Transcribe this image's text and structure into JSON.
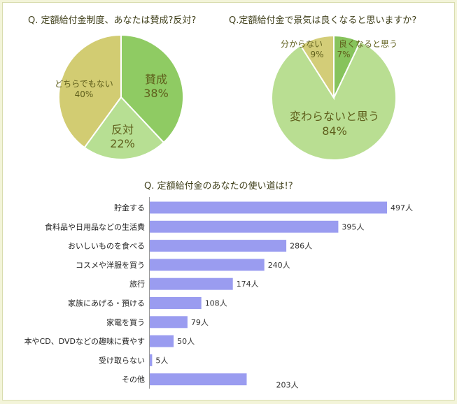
{
  "colors": {
    "pie1": [
      "#8fcb63",
      "#b7df93",
      "#d2cc72"
    ],
    "pie2": [
      "#87c35c",
      "#b9de92",
      "#d3cd78"
    ],
    "bar": "#9a9cf0",
    "text": "#5f5f1c"
  },
  "chart_data": [
    {
      "type": "pie",
      "title": "Q. 定額給付金制度、あなたは賛成?反対?",
      "slices": [
        {
          "label": "賛成",
          "value": 38,
          "display": "38%"
        },
        {
          "label": "反対",
          "value": 22,
          "display": "22%"
        },
        {
          "label": "どちらでもない",
          "value": 40,
          "display": "40%"
        }
      ]
    },
    {
      "type": "pie",
      "title": "Q.定額給付金で景気は良くなると思いますか?",
      "slices": [
        {
          "label": "良くなると思う",
          "value": 7,
          "display": "7%"
        },
        {
          "label": "変わらないと思う",
          "value": 84,
          "display": "84%"
        },
        {
          "label": "分からない",
          "value": 9,
          "display": "9%"
        }
      ]
    },
    {
      "type": "bar",
      "orientation": "horizontal",
      "title": "Q. 定額給付金のあなたの使い道は!?",
      "categories": [
        "貯金する",
        "食料品や日用品などの生活費",
        "おいしいものを食べる",
        "コスメや洋服を買う",
        "旅行",
        "家族にあげる・預ける",
        "家電を買う",
        "本やCD、DVDなどの趣味に費やす",
        "受け取らない",
        "その他"
      ],
      "values": [
        497,
        395,
        286,
        240,
        174,
        108,
        79,
        50,
        5,
        203
      ],
      "value_labels": [
        "497人",
        "395人",
        "286人",
        "240人",
        "174人",
        "108人",
        "79人",
        "50人",
        "5人",
        "203人"
      ],
      "xlim": [
        0,
        497
      ]
    }
  ]
}
